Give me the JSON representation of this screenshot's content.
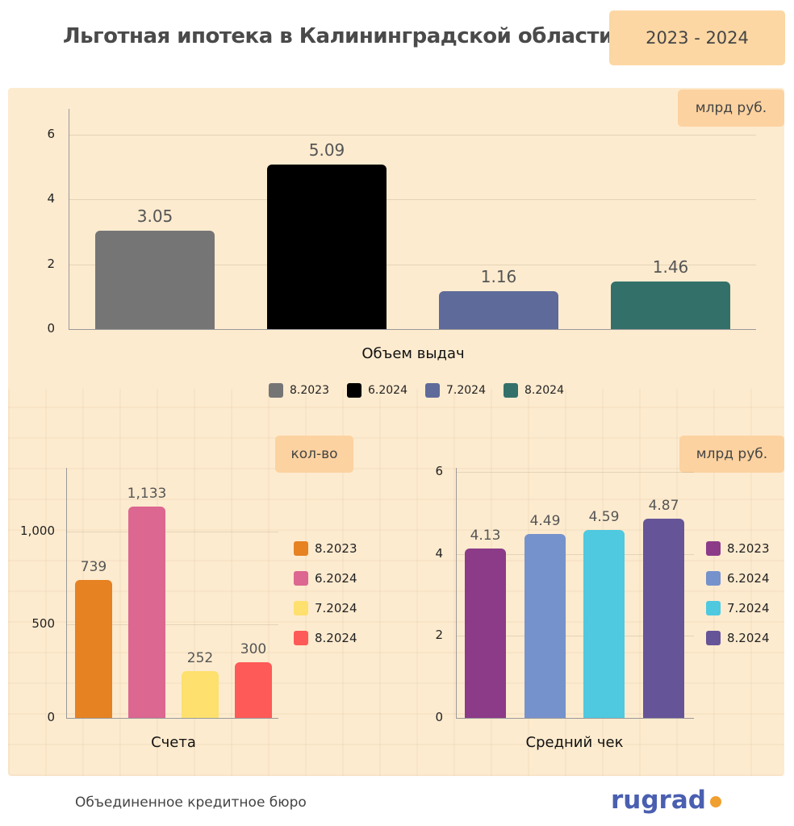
{
  "header": {
    "title": "Льготная ипотека в Калининградской области",
    "years": "2023 - 2024"
  },
  "colors": {
    "panel_bg": "#fdebcf",
    "badge_bg": "#fcd2a0"
  },
  "chart_data": [
    {
      "type": "bar",
      "unit": "млрд руб.",
      "xlabel": "Объем выдач",
      "categories": [
        "8.2023",
        "6.2024",
        "7.2024",
        "8.2024"
      ],
      "values": [
        3.05,
        5.09,
        1.16,
        1.46
      ],
      "value_labels": [
        "3.05",
        "5.09",
        "1.16",
        "1.46"
      ],
      "colors": [
        "#757575",
        "#000000",
        "#5e6a9a",
        "#33706a"
      ],
      "ylim": [
        0,
        6.8
      ],
      "yticks": [
        0,
        2,
        4,
        6
      ],
      "ytick_labels": [
        "0",
        "2",
        "4",
        "6"
      ],
      "legend": "bottom"
    },
    {
      "type": "bar",
      "unit": "кол-во",
      "xlabel": "Счета",
      "categories": [
        "8.2023",
        "6.2024",
        "7.2024",
        "8.2024"
      ],
      "values": [
        739,
        1133,
        252,
        300
      ],
      "value_labels": [
        "739",
        "1,133",
        "252",
        "300"
      ],
      "colors": [
        "#e68222",
        "#dc6790",
        "#fde06e",
        "#fe5a57"
      ],
      "ylim": [
        0,
        1340
      ],
      "yticks": [
        0,
        500,
        1000
      ],
      "ytick_labels": [
        "0",
        "500",
        "1,000"
      ],
      "legend": "right"
    },
    {
      "type": "bar",
      "unit": "млрд руб.",
      "xlabel": "Средний чек",
      "categories": [
        "8.2023",
        "6.2024",
        "7.2024",
        "8.2024"
      ],
      "values": [
        4.13,
        4.49,
        4.59,
        4.87
      ],
      "value_labels": [
        "4.13",
        "4.49",
        "4.59",
        "4.87"
      ],
      "colors": [
        "#8c3b88",
        "#7592cc",
        "#4ec9e0",
        "#665498"
      ],
      "ylim": [
        0,
        6.1
      ],
      "yticks": [
        0,
        2,
        4,
        6
      ],
      "ytick_labels": [
        "0",
        "2",
        "4",
        "6"
      ],
      "legend": "right"
    }
  ],
  "footer": {
    "source": "Объединенное кредитное бюро",
    "logo": "rugrad"
  }
}
